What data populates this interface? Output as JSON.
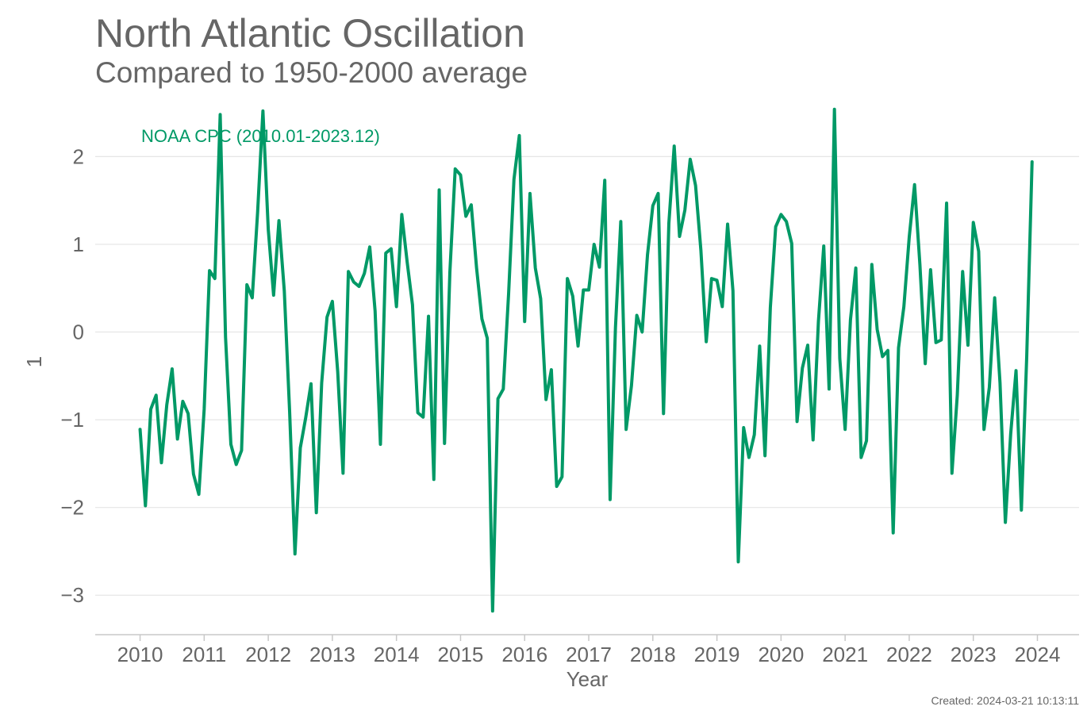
{
  "header": {
    "title": "North Atlantic Oscillation",
    "subtitle": "Compared to 1950-2000 average"
  },
  "footer": {
    "created": "Created: 2024-03-21 10:13:11"
  },
  "colors": {
    "series": "#009966",
    "text": "#666666",
    "grid": "#e6e6e6",
    "axis": "#c8c8c8"
  },
  "chart_data": {
    "type": "line",
    "xlabel": "Year",
    "ylabel": "1",
    "xlim": [
      2009.3,
      2024.65
    ],
    "ylim": [
      -3.45,
      2.7
    ],
    "x_ticks": [
      2010,
      2011,
      2012,
      2013,
      2014,
      2015,
      2016,
      2017,
      2018,
      2019,
      2020,
      2021,
      2022,
      2023,
      2024
    ],
    "y_ticks": [
      2,
      1,
      0,
      -1,
      -2,
      -3
    ],
    "y_tick_labels": [
      "2",
      "1",
      "0",
      "−1",
      "−2",
      "−3"
    ],
    "grid": "horizontal",
    "legend_position": "top-left",
    "series": [
      {
        "name": "NOAA CPC (2010.01-2023.12)",
        "start_year": 2010,
        "start_month": 1,
        "values": [
          -1.11,
          -1.98,
          -0.88,
          -0.72,
          -1.49,
          -0.83,
          -0.42,
          -1.22,
          -0.79,
          -0.93,
          -1.62,
          -1.85,
          -0.88,
          0.7,
          0.61,
          2.48,
          -0.06,
          -1.28,
          -1.51,
          -1.35,
          0.54,
          0.39,
          1.36,
          2.52,
          1.17,
          0.42,
          1.27,
          0.47,
          -0.91,
          -2.53,
          -1.32,
          -0.98,
          -0.59,
          -2.06,
          -0.58,
          0.17,
          0.35,
          -0.45,
          -1.61,
          0.69,
          0.57,
          0.52,
          0.67,
          0.97,
          0.24,
          -1.28,
          0.9,
          0.95,
          0.29,
          1.34,
          0.8,
          0.31,
          -0.92,
          -0.97,
          0.18,
          -1.68,
          1.62,
          -1.27,
          0.68,
          1.86,
          1.79,
          1.32,
          1.45,
          0.73,
          0.15,
          -0.07,
          -3.18,
          -0.76,
          -0.65,
          0.44,
          1.74,
          2.24,
          0.12,
          1.58,
          0.73,
          0.38,
          -0.77,
          -0.43,
          -1.76,
          -1.65,
          0.61,
          0.41,
          -0.16,
          0.48,
          0.48,
          1.0,
          0.74,
          1.73,
          -1.91,
          0.05,
          1.26,
          -1.11,
          -0.61,
          0.19,
          0.0,
          0.88,
          1.44,
          1.58,
          -0.93,
          1.24,
          2.12,
          1.09,
          1.39,
          1.97,
          1.67,
          0.93,
          -0.11,
          0.61,
          0.59,
          0.29,
          1.23,
          0.47,
          -2.62,
          -1.09,
          -1.43,
          -1.17,
          -0.16,
          -1.41,
          0.28,
          1.2,
          1.34,
          1.26,
          1.01,
          -1.02,
          -0.41,
          -0.15,
          -1.23,
          0.12,
          0.98,
          -0.65,
          2.54,
          -0.3,
          -1.11,
          0.14,
          0.73,
          -1.43,
          -1.24,
          0.77,
          0.03,
          -0.28,
          -0.21,
          -2.29,
          -0.18,
          0.29,
          1.08,
          1.68,
          0.77,
          -0.36,
          0.71,
          -0.12,
          -0.09,
          1.47,
          -1.61,
          -0.72,
          0.69,
          -0.15,
          1.25,
          0.92,
          -1.11,
          -0.63,
          0.39,
          -0.58,
          -2.17,
          -1.16,
          -0.44,
          -2.03,
          -0.28,
          1.94
        ]
      }
    ]
  }
}
